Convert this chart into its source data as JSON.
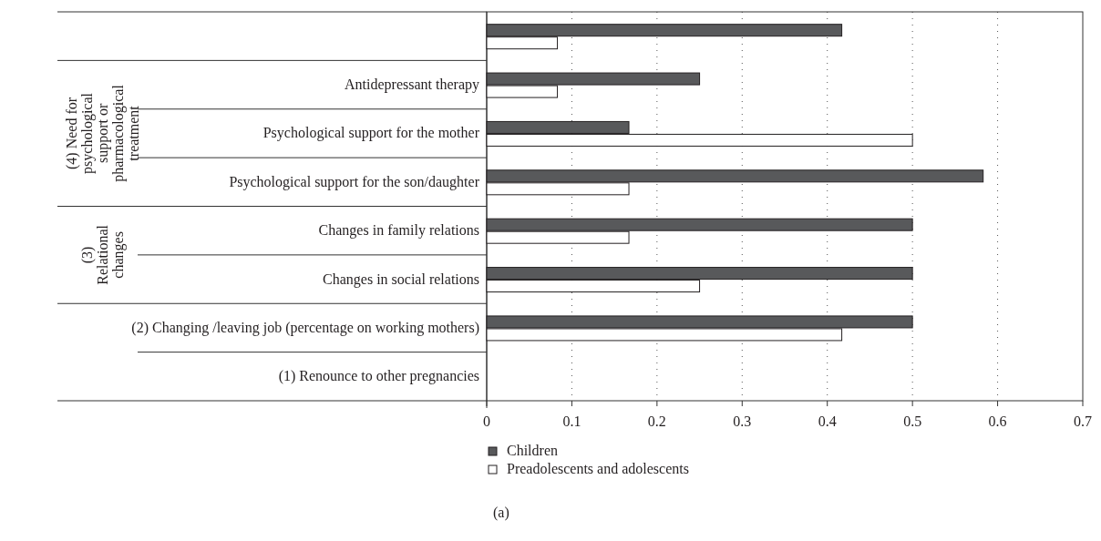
{
  "chart_data": {
    "type": "bar",
    "orientation": "horizontal",
    "categories": [
      null,
      "Antidepressant therapy",
      "Psychological support for the mother",
      "Psychological support for the son/daughter",
      "Changes in family relations",
      "Changes in social relations",
      "(2) Changing /leaving job (percentage on working mothers)",
      "(1) Renounce to other pregnancies"
    ],
    "series": [
      {
        "name": "Children",
        "color": "#58595b",
        "values": [
          0.417,
          0.25,
          0.167,
          0.583,
          0.5,
          0.5,
          0.5,
          0
        ]
      },
      {
        "name": "Preadolescents and adolescents",
        "color": "#ffffff",
        "values": [
          0.083,
          0.083,
          0.5,
          0.167,
          0.167,
          0.25,
          0.417,
          0
        ]
      }
    ],
    "xlim": [
      0,
      0.7
    ],
    "xticks": [
      0,
      0.1,
      0.2,
      0.3,
      0.4,
      0.5,
      0.6,
      0.7
    ],
    "grid": "x",
    "legend": "bottom",
    "annotations": [
      "(4) Need for psychological support or pharmacological treatment",
      "(3) Relational changes",
      "(a)"
    ]
  }
}
